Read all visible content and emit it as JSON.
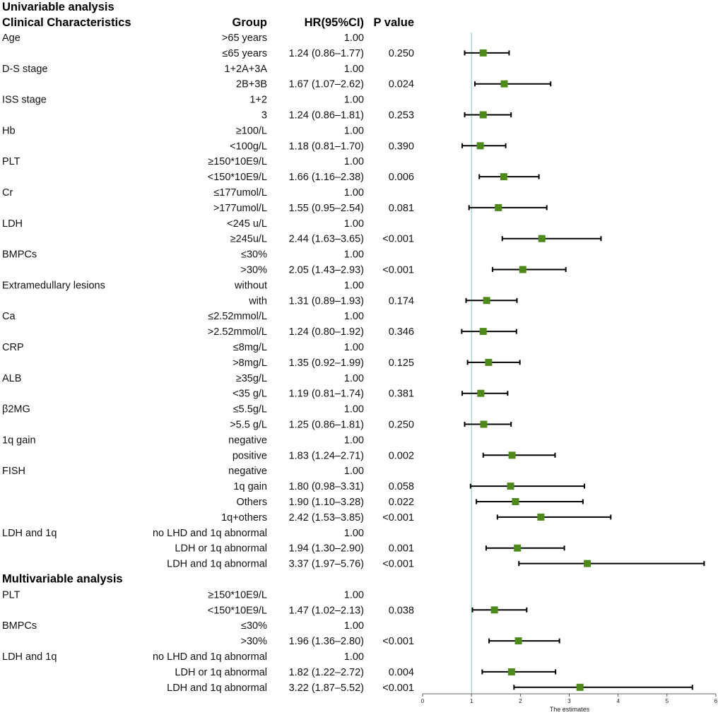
{
  "chart_data": {
    "type": "forest",
    "headers": {
      "title": "Univariable  analysis",
      "characteristics": "Clinical Characteristics",
      "group": "Group",
      "hr": "HR(95%CI)",
      "p": "P value"
    },
    "xlabel": "The estimates",
    "xlim": [
      0,
      6
    ],
    "xticks": [
      "0",
      "1",
      "2",
      "3",
      "4",
      "5",
      "6"
    ],
    "reference_line": 1,
    "colors": {
      "marker": "#4e8a1b",
      "refline": "#7fc8c0",
      "errorbar": "#000000"
    },
    "rows": [
      {
        "label": "Age",
        "group": ">65 years",
        "hrtext": "1.00",
        "p": ""
      },
      {
        "label": "",
        "group": "≤65 years",
        "hrtext": "1.24 (0.86–1.77)",
        "p": "0.250",
        "hr": 1.24,
        "lo": 0.86,
        "hi": 1.77
      },
      {
        "label": "D-S stage",
        "group": "1+2A+3A",
        "hrtext": "1.00",
        "p": ""
      },
      {
        "label": "",
        "group": "2B+3B",
        "hrtext": "1.67 (1.07–2.62)",
        "p": "0.024",
        "hr": 1.67,
        "lo": 1.07,
        "hi": 2.62
      },
      {
        "label": "ISS stage",
        "group": "1+2",
        "hrtext": "1.00",
        "p": ""
      },
      {
        "label": "",
        "group": "3",
        "hrtext": "1.24 (0.86–1.81)",
        "p": "0.253",
        "hr": 1.24,
        "lo": 0.86,
        "hi": 1.81
      },
      {
        "label": "Hb",
        "group": "≥100/L",
        "hrtext": "1.00",
        "p": ""
      },
      {
        "label": "",
        "group": "<100g/L",
        "hrtext": "1.18 (0.81–1.70)",
        "p": "0.390",
        "hr": 1.18,
        "lo": 0.81,
        "hi": 1.7
      },
      {
        "label": "PLT",
        "group": "≥150*10E9/L",
        "hrtext": "1.00",
        "p": ""
      },
      {
        "label": "",
        "group": "<150*10E9/L",
        "hrtext": "1.66 (1.16–2.38)",
        "p": "0.006",
        "hr": 1.66,
        "lo": 1.16,
        "hi": 2.38
      },
      {
        "label": "Cr",
        "group": "≤177umol/L",
        "hrtext": "1.00",
        "p": ""
      },
      {
        "label": "",
        "group": ">177umol/L",
        "hrtext": "1.55 (0.95–2.54)",
        "p": "0.081",
        "hr": 1.55,
        "lo": 0.95,
        "hi": 2.54
      },
      {
        "label": "LDH",
        "group": "<245 u/L",
        "hrtext": "1.00",
        "p": ""
      },
      {
        "label": "",
        "group": "≥245u/L",
        "hrtext": "2.44 (1.63–3.65)",
        "p": "<0.001",
        "hr": 2.44,
        "lo": 1.63,
        "hi": 3.65
      },
      {
        "label": "BMPCs",
        "group": "≤30%",
        "hrtext": "1.00",
        "p": ""
      },
      {
        "label": "",
        "group": ">30%",
        "hrtext": "2.05 (1.43–2.93)",
        "p": "<0.001",
        "hr": 2.05,
        "lo": 1.43,
        "hi": 2.93
      },
      {
        "label": "Extramedullary lesions",
        "group": "without",
        "hrtext": "1.00",
        "p": ""
      },
      {
        "label": "",
        "group": "with",
        "hrtext": "1.31 (0.89–1.93)",
        "p": "0.174",
        "hr": 1.31,
        "lo": 0.89,
        "hi": 1.93
      },
      {
        "label": "Ca",
        "group": "≤2.52mmol/L",
        "hrtext": "1.00",
        "p": ""
      },
      {
        "label": "",
        "group": ">2.52mmol/L",
        "hrtext": "1.24 (0.80–1.92)",
        "p": "0.346",
        "hr": 1.24,
        "lo": 0.8,
        "hi": 1.92
      },
      {
        "label": "CRP",
        "group": "≤8mg/L",
        "hrtext": "1.00",
        "p": ""
      },
      {
        "label": "",
        "group": ">8mg/L",
        "hrtext": "1.35 (0.92–1.99)",
        "p": "0.125",
        "hr": 1.35,
        "lo": 0.92,
        "hi": 1.99
      },
      {
        "label": "ALB",
        "group": "≥35g/L",
        "hrtext": "1.00",
        "p": ""
      },
      {
        "label": "",
        "group": "<35 g/L",
        "hrtext": "1.19 (0.81–1.74)",
        "p": "0.381",
        "hr": 1.19,
        "lo": 0.81,
        "hi": 1.74
      },
      {
        "label": "β2MG",
        "group": "≤5.5g/L",
        "hrtext": "1.00",
        "p": ""
      },
      {
        "label": "",
        "group": ">5.5 g/L",
        "hrtext": "1.25 (0.86–1.81)",
        "p": "0.250",
        "hr": 1.25,
        "lo": 0.86,
        "hi": 1.81
      },
      {
        "label": "1q gain",
        "group": "negative",
        "hrtext": "1.00",
        "p": ""
      },
      {
        "label": "",
        "group": "positive",
        "hrtext": "1.83 (1.24–2.71)",
        "p": "0.002",
        "hr": 1.83,
        "lo": 1.24,
        "hi": 2.71
      },
      {
        "label": "FISH",
        "group": "negative",
        "hrtext": "1.00",
        "p": ""
      },
      {
        "label": "",
        "group": "1q gain",
        "hrtext": "1.80 (0.98–3.31)",
        "p": "0.058",
        "hr": 1.8,
        "lo": 0.98,
        "hi": 3.31
      },
      {
        "label": "",
        "group": "Others",
        "hrtext": "1.90 (1.10–3.28)",
        "p": "0.022",
        "hr": 1.9,
        "lo": 1.1,
        "hi": 3.28
      },
      {
        "label": "",
        "group": "1q+others",
        "hrtext": "2.42 (1.53–3.85)",
        "p": "<0.001",
        "hr": 2.42,
        "lo": 1.53,
        "hi": 3.85
      },
      {
        "label": "LDH and 1q",
        "group": "no LHD and 1q abnormal",
        "hrtext": "1.00",
        "p": ""
      },
      {
        "label": "",
        "group": "LDH or 1q abnormal",
        "hrtext": "1.94 (1.30–2.90)",
        "p": "0.001",
        "hr": 1.94,
        "lo": 1.3,
        "hi": 2.9
      },
      {
        "label": "",
        "group": "LDH and 1q abnormal",
        "hrtext": "3.37 (1.97–5.76)",
        "p": "<0.001",
        "hr": 3.37,
        "lo": 1.97,
        "hi": 5.76
      },
      {
        "label": "Multivariable analysis",
        "heading": true
      },
      {
        "label": "PLT",
        "group": "≥150*10E9/L",
        "hrtext": "1.00",
        "p": ""
      },
      {
        "label": "",
        "group": "<150*10E9/L",
        "hrtext": "1.47 (1.02–2.13)",
        "p": "0.038",
        "hr": 1.47,
        "lo": 1.02,
        "hi": 2.13
      },
      {
        "label": "BMPCs",
        "group": "≤30%",
        "hrtext": "1.00",
        "p": ""
      },
      {
        "label": "",
        "group": ">30%",
        "hrtext": "1.96 (1.36–2.80)",
        "p": "<0.001",
        "hr": 1.96,
        "lo": 1.36,
        "hi": 2.8
      },
      {
        "label": "LDH and 1q",
        "group": "no LHD and 1q abnormal",
        "hrtext": "1.00",
        "p": ""
      },
      {
        "label": "",
        "group": "LDH or 1q abnormal",
        "hrtext": "1.82 (1.22–2.72)",
        "p": "0.004",
        "hr": 1.82,
        "lo": 1.22,
        "hi": 2.72
      },
      {
        "label": "",
        "group": "LDH and 1q abnormal",
        "hrtext": "3.22 (1.87–5.52)",
        "p": "<0.001",
        "hr": 3.22,
        "lo": 1.87,
        "hi": 5.52
      }
    ]
  }
}
